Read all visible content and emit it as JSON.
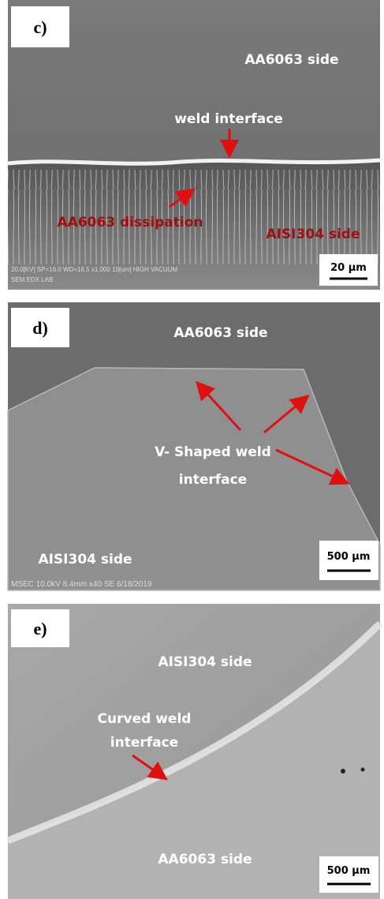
{
  "panels": [
    {
      "label": "c)",
      "annotations": [
        "AA6063 side",
        "weld interface",
        "AA6063 dissipation",
        "AISI304 side"
      ],
      "scale_bar": "20 µm",
      "info": [
        "20.0[KV]   SP=16.0   WD=16.5   x1,000   10[um]   HIGH VACUUM",
        "SEM EDX LAB"
      ]
    },
    {
      "label": "d)",
      "annotations": [
        "AA6063 side",
        "V- Shaped weld",
        "interface",
        "AISI304 side"
      ],
      "scale_bar": "500 µm",
      "info": [
        "MSEC 10.0kV 8.4mm x40 SE 6/18/2019"
      ]
    },
    {
      "label": "e)",
      "annotations": [
        "AISI304 side",
        "Curved weld",
        "interface",
        "AA6063 side"
      ],
      "scale_bar": "500 µm"
    }
  ]
}
